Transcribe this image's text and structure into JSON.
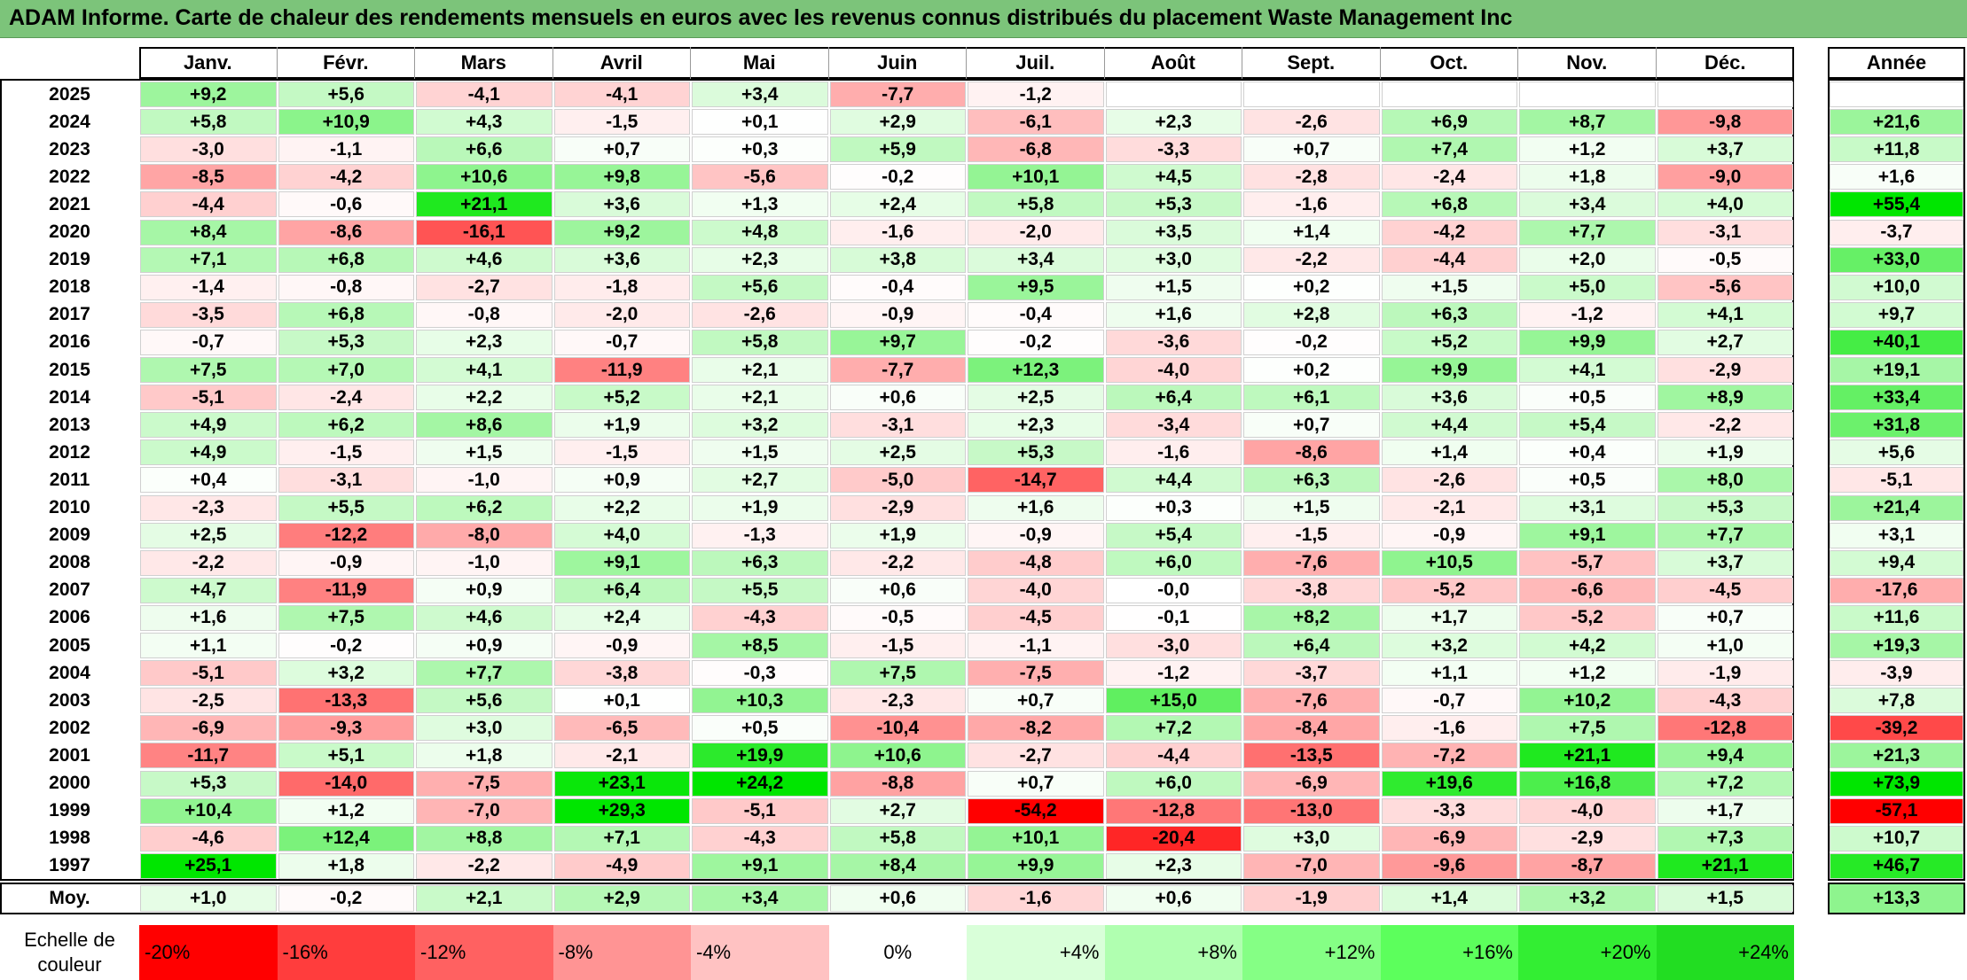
{
  "title": "ADAM Informe. Carte de chaleur des rendements mensuels en euros avec les revenus connus distribués du placement Waste Management Inc",
  "chart_data": {
    "type": "heatmap",
    "title": "ADAM Informe. Carte de chaleur des rendements mensuels en euros avec les revenus connus distribués du placement Waste Management Inc",
    "columns": [
      "Janv.",
      "Févr.",
      "Mars",
      "Avril",
      "Mai",
      "Juin",
      "Juil.",
      "Août",
      "Sept.",
      "Oct.",
      "Nov.",
      "Déc."
    ],
    "year_column_label": "Année",
    "rows": [
      {
        "year": "2025",
        "months": [
          "+9,2",
          "+5,6",
          "-4,1",
          "-4,1",
          "+3,4",
          "-7,7",
          "-1,2",
          "",
          "",
          "",
          "",
          ""
        ],
        "annual": ""
      },
      {
        "year": "2024",
        "months": [
          "+5,8",
          "+10,9",
          "+4,3",
          "-1,5",
          "+0,1",
          "+2,9",
          "-6,1",
          "+2,3",
          "-2,6",
          "+6,9",
          "+8,7",
          "-9,8"
        ],
        "annual": "+21,6"
      },
      {
        "year": "2023",
        "months": [
          "-3,0",
          "-1,1",
          "+6,6",
          "+0,7",
          "+0,3",
          "+5,9",
          "-6,8",
          "-3,3",
          "+0,7",
          "+7,4",
          "+1,2",
          "+3,7"
        ],
        "annual": "+11,8"
      },
      {
        "year": "2022",
        "months": [
          "-8,5",
          "-4,2",
          "+10,6",
          "+9,8",
          "-5,6",
          "-0,2",
          "+10,1",
          "+4,5",
          "-2,8",
          "-2,4",
          "+1,8",
          "-9,0"
        ],
        "annual": "+1,6"
      },
      {
        "year": "2021",
        "months": [
          "-4,4",
          "-0,6",
          "+21,1",
          "+3,6",
          "+1,3",
          "+2,4",
          "+5,8",
          "+5,3",
          "-1,6",
          "+6,8",
          "+3,4",
          "+4,0"
        ],
        "annual": "+55,4"
      },
      {
        "year": "2020",
        "months": [
          "+8,4",
          "-8,6",
          "-16,1",
          "+9,2",
          "+4,8",
          "-1,6",
          "-2,0",
          "+3,5",
          "+1,4",
          "-4,2",
          "+7,7",
          "-3,1"
        ],
        "annual": "-3,7"
      },
      {
        "year": "2019",
        "months": [
          "+7,1",
          "+6,8",
          "+4,6",
          "+3,6",
          "+2,3",
          "+3,8",
          "+3,4",
          "+3,0",
          "-2,2",
          "-4,4",
          "+2,0",
          "-0,5"
        ],
        "annual": "+33,0"
      },
      {
        "year": "2018",
        "months": [
          "-1,4",
          "-0,8",
          "-2,7",
          "-1,8",
          "+5,6",
          "-0,4",
          "+9,5",
          "+1,5",
          "+0,2",
          "+1,5",
          "+5,0",
          "-5,6"
        ],
        "annual": "+10,0"
      },
      {
        "year": "2017",
        "months": [
          "-3,5",
          "+6,8",
          "-0,8",
          "-2,0",
          "-2,6",
          "-0,9",
          "-0,4",
          "+1,6",
          "+2,8",
          "+6,3",
          "-1,2",
          "+4,1"
        ],
        "annual": "+9,7"
      },
      {
        "year": "2016",
        "months": [
          "-0,7",
          "+5,3",
          "+2,3",
          "-0,7",
          "+5,8",
          "+9,7",
          "-0,2",
          "-3,6",
          "-0,2",
          "+5,2",
          "+9,9",
          "+2,7"
        ],
        "annual": "+40,1"
      },
      {
        "year": "2015",
        "months": [
          "+7,5",
          "+7,0",
          "+4,1",
          "-11,9",
          "+2,1",
          "-7,7",
          "+12,3",
          "-4,0",
          "+0,2",
          "+9,9",
          "+4,1",
          "-2,9"
        ],
        "annual": "+19,1"
      },
      {
        "year": "2014",
        "months": [
          "-5,1",
          "-2,4",
          "+2,2",
          "+5,2",
          "+2,1",
          "+0,6",
          "+2,5",
          "+6,4",
          "+6,1",
          "+3,6",
          "+0,5",
          "+8,9"
        ],
        "annual": "+33,4"
      },
      {
        "year": "2013",
        "months": [
          "+4,9",
          "+6,2",
          "+8,6",
          "+1,9",
          "+3,2",
          "-3,1",
          "+2,3",
          "-3,4",
          "+0,7",
          "+4,4",
          "+5,4",
          "-2,2"
        ],
        "annual": "+31,8"
      },
      {
        "year": "2012",
        "months": [
          "+4,9",
          "-1,5",
          "+1,5",
          "-1,5",
          "+1,5",
          "+2,5",
          "+5,3",
          "-1,6",
          "-8,6",
          "+1,4",
          "+0,4",
          "+1,9"
        ],
        "annual": "+5,6"
      },
      {
        "year": "2011",
        "months": [
          "+0,4",
          "-3,1",
          "-1,0",
          "+0,9",
          "+2,7",
          "-5,0",
          "-14,7",
          "+4,4",
          "+6,3",
          "-2,6",
          "+0,5",
          "+8,0"
        ],
        "annual": "-5,1"
      },
      {
        "year": "2010",
        "months": [
          "-2,3",
          "+5,5",
          "+6,2",
          "+2,2",
          "+1,9",
          "-2,9",
          "+1,6",
          "+0,3",
          "+1,5",
          "-2,1",
          "+3,1",
          "+5,3"
        ],
        "annual": "+21,4"
      },
      {
        "year": "2009",
        "months": [
          "+2,5",
          "-12,2",
          "-8,0",
          "+4,0",
          "-1,3",
          "+1,9",
          "-0,9",
          "+5,4",
          "-1,5",
          "-0,9",
          "+9,1",
          "+7,7"
        ],
        "annual": "+3,1"
      },
      {
        "year": "2008",
        "months": [
          "-2,2",
          "-0,9",
          "-1,0",
          "+9,1",
          "+6,3",
          "-2,2",
          "-4,8",
          "+6,0",
          "-7,6",
          "+10,5",
          "-5,7",
          "+3,7"
        ],
        "annual": "+9,4"
      },
      {
        "year": "2007",
        "months": [
          "+4,7",
          "-11,9",
          "+0,9",
          "+6,4",
          "+5,5",
          "+0,6",
          "-4,0",
          "-0,0",
          "-3,8",
          "-5,2",
          "-6,6",
          "-4,5"
        ],
        "annual": "-17,6"
      },
      {
        "year": "2006",
        "months": [
          "+1,6",
          "+7,5",
          "+4,6",
          "+2,4",
          "-4,3",
          "-0,5",
          "-4,5",
          "-0,1",
          "+8,2",
          "+1,7",
          "-5,2",
          "+0,7"
        ],
        "annual": "+11,6"
      },
      {
        "year": "2005",
        "months": [
          "+1,1",
          "-0,2",
          "+0,9",
          "-0,9",
          "+8,5",
          "-1,5",
          "-1,1",
          "-3,0",
          "+6,4",
          "+3,2",
          "+4,2",
          "+1,0"
        ],
        "annual": "+19,3"
      },
      {
        "year": "2004",
        "months": [
          "-5,1",
          "+3,2",
          "+7,7",
          "-3,8",
          "-0,3",
          "+7,5",
          "-7,5",
          "-1,2",
          "-3,7",
          "+1,1",
          "+1,2",
          "-1,9"
        ],
        "annual": "-3,9"
      },
      {
        "year": "2003",
        "months": [
          "-2,5",
          "-13,3",
          "+5,6",
          "+0,1",
          "+10,3",
          "-2,3",
          "+0,7",
          "+15,0",
          "-7,6",
          "-0,7",
          "+10,2",
          "-4,3"
        ],
        "annual": "+7,8"
      },
      {
        "year": "2002",
        "months": [
          "-6,9",
          "-9,3",
          "+3,0",
          "-6,5",
          "+0,5",
          "-10,4",
          "-8,2",
          "+7,2",
          "-8,4",
          "-1,6",
          "+7,5",
          "-12,8"
        ],
        "annual": "-39,2"
      },
      {
        "year": "2001",
        "months": [
          "-11,7",
          "+5,1",
          "+1,8",
          "-2,1",
          "+19,9",
          "+10,6",
          "-2,7",
          "-4,4",
          "-13,5",
          "-7,2",
          "+21,1",
          "+9,4"
        ],
        "annual": "+21,3"
      },
      {
        "year": "2000",
        "months": [
          "+5,3",
          "-14,0",
          "-7,5",
          "+23,1",
          "+24,2",
          "-8,8",
          "+0,7",
          "+6,0",
          "-6,9",
          "+19,6",
          "+16,8",
          "+7,2"
        ],
        "annual": "+73,9"
      },
      {
        "year": "1999",
        "months": [
          "+10,4",
          "+1,2",
          "-7,0",
          "+29,3",
          "-5,1",
          "+2,7",
          "-54,2",
          "-12,8",
          "-13,0",
          "-3,3",
          "-4,0",
          "+1,7"
        ],
        "annual": "-57,1"
      },
      {
        "year": "1998",
        "months": [
          "-4,6",
          "+12,4",
          "+8,8",
          "+7,1",
          "-4,3",
          "+5,8",
          "+10,1",
          "-20,4",
          "+3,0",
          "-6,9",
          "-2,9",
          "+7,3"
        ],
        "annual": "+10,7"
      },
      {
        "year": "1997",
        "months": [
          "+25,1",
          "+1,8",
          "-2,2",
          "-4,9",
          "+9,1",
          "+8,4",
          "+9,9",
          "+2,3",
          "-7,0",
          "-9,6",
          "-8,7",
          "+21,1"
        ],
        "annual": "+46,7"
      }
    ],
    "average_row": {
      "label": "Moy.",
      "months": [
        "+1,0",
        "-0,2",
        "+2,1",
        "+2,9",
        "+3,4",
        "+0,6",
        "-1,6",
        "+0,6",
        "-1,9",
        "+1,4",
        "+3,2",
        "+1,5"
      ],
      "annual": "+13,3"
    },
    "color_scale": {
      "label": "Echelle de couleur",
      "stops": [
        "-20%",
        "-16%",
        "-12%",
        "-8%",
        "-4%",
        "0%",
        "+4%",
        "+8%",
        "+12%",
        "+16%",
        "+20%",
        "+24%"
      ],
      "colors": [
        "#ff0000",
        "#ff3d3d",
        "#ff6161",
        "#ff9494",
        "#ffc2c2",
        "#ffffff",
        "#d9ffd9",
        "#b0ffb0",
        "#85ff85",
        "#5cff5c",
        "#33ee33",
        "#22dd22"
      ]
    },
    "colors": {
      "negative": "#ff0000",
      "neutral": "#ffffff",
      "positive": "#00e000",
      "title_bar": "#7cc47a"
    }
  }
}
